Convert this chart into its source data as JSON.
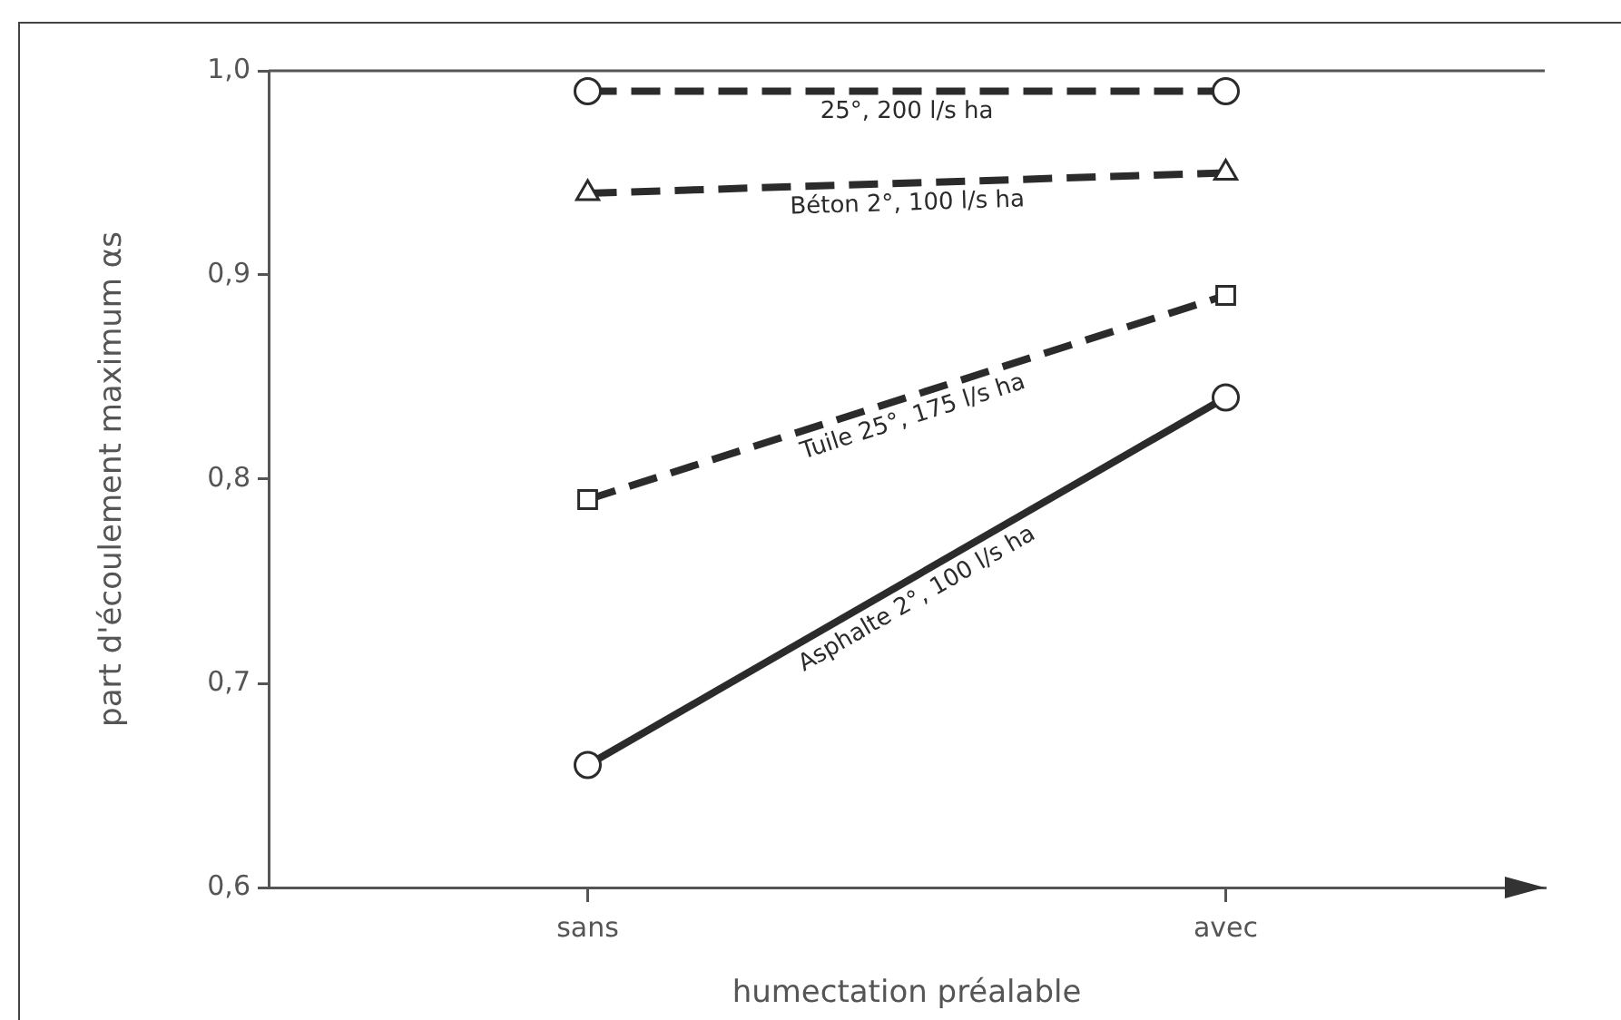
{
  "chart_data": {
    "type": "line",
    "xlabel": "humectation préalable",
    "ylabel": "part d'écoulement maximum αs",
    "categories": [
      "sans",
      "avec"
    ],
    "series": [
      {
        "name": "25°, 200 l/s ha",
        "color": "#2b2b2b",
        "values": [
          0.99,
          0.99
        ],
        "marker": "circle",
        "line_style": "dashed"
      },
      {
        "name": "Béton 2°, 100 l/s ha",
        "color": "#2b2b2b",
        "values": [
          0.94,
          0.95
        ],
        "marker": "triangle",
        "line_style": "dashed"
      },
      {
        "name": "Tuile 25°, 175 l/s ha",
        "color": "#2b2b2b",
        "values": [
          0.79,
          0.89
        ],
        "marker": "square",
        "line_style": "dashed"
      },
      {
        "name": "Asphalte 2°, 100 l/s ha",
        "color": "#2b2b2b",
        "values": [
          0.66,
          0.84
        ],
        "marker": "circle",
        "line_style": "solid"
      }
    ],
    "ylim": [
      0.6,
      1.0
    ],
    "yticks": [
      {
        "value": 0.6,
        "label": "0,6"
      },
      {
        "value": 0.7,
        "label": "0,7"
      },
      {
        "value": 0.8,
        "label": "0,8"
      },
      {
        "value": 0.9,
        "label": "0,9"
      },
      {
        "value": 1.0,
        "label": "1,0"
      }
    ],
    "grid": false,
    "legend": false
  }
}
